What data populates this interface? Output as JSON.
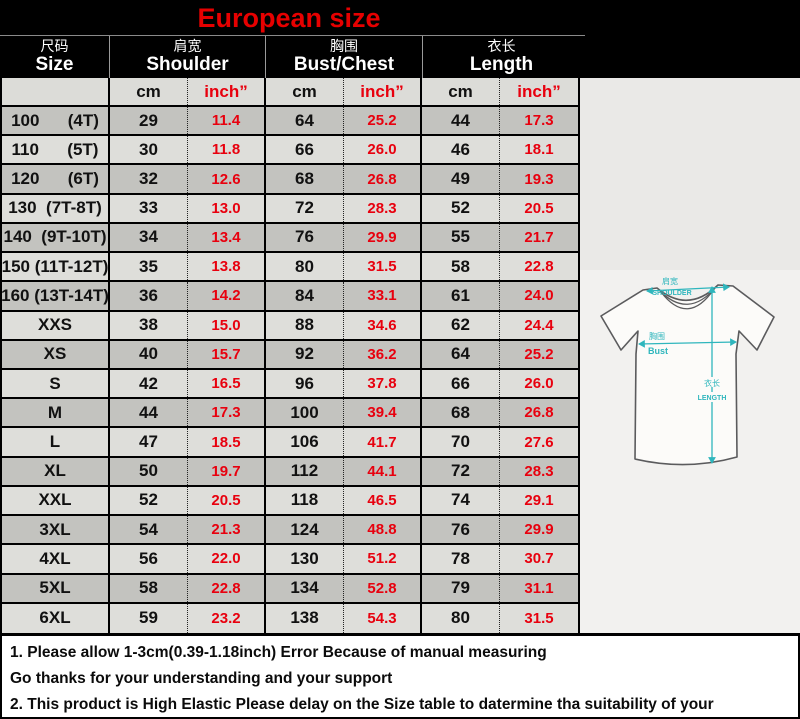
{
  "title": "European size",
  "chart_data": {
    "type": "table",
    "title": "European size",
    "column_groups": [
      {
        "zh": "尺码",
        "en": "Size"
      },
      {
        "zh": "肩宽",
        "en": "Shoulder"
      },
      {
        "zh": "胸围",
        "en": "Bust/Chest"
      },
      {
        "zh": "衣长",
        "en": "Length"
      }
    ],
    "units": {
      "cm": "cm",
      "inch": "inch”"
    },
    "rows": [
      {
        "size": "100      (4T)",
        "shoulder_cm": "29",
        "shoulder_in": "11.4",
        "bust_cm": "64",
        "bust_in": "25.2",
        "length_cm": "44",
        "length_in": "17.3"
      },
      {
        "size": "110      (5T)",
        "shoulder_cm": "30",
        "shoulder_in": "11.8",
        "bust_cm": "66",
        "bust_in": "26.0",
        "length_cm": "46",
        "length_in": "18.1"
      },
      {
        "size": "120      (6T)",
        "shoulder_cm": "32",
        "shoulder_in": "12.6",
        "bust_cm": "68",
        "bust_in": "26.8",
        "length_cm": "49",
        "length_in": "19.3"
      },
      {
        "size": "130  (7T-8T)",
        "shoulder_cm": "33",
        "shoulder_in": "13.0",
        "bust_cm": "72",
        "bust_in": "28.3",
        "length_cm": "52",
        "length_in": "20.5"
      },
      {
        "size": "140  (9T-10T)",
        "shoulder_cm": "34",
        "shoulder_in": "13.4",
        "bust_cm": "76",
        "bust_in": "29.9",
        "length_cm": "55",
        "length_in": "21.7"
      },
      {
        "size": "150 (11T-12T)",
        "shoulder_cm": "35",
        "shoulder_in": "13.8",
        "bust_cm": "80",
        "bust_in": "31.5",
        "length_cm": "58",
        "length_in": "22.8"
      },
      {
        "size": "160 (13T-14T)",
        "shoulder_cm": "36",
        "shoulder_in": "14.2",
        "bust_cm": "84",
        "bust_in": "33.1",
        "length_cm": "61",
        "length_in": "24.0"
      },
      {
        "size": "XXS",
        "shoulder_cm": "38",
        "shoulder_in": "15.0",
        "bust_cm": "88",
        "bust_in": "34.6",
        "length_cm": "62",
        "length_in": "24.4"
      },
      {
        "size": "XS",
        "shoulder_cm": "40",
        "shoulder_in": "15.7",
        "bust_cm": "92",
        "bust_in": "36.2",
        "length_cm": "64",
        "length_in": "25.2"
      },
      {
        "size": "S",
        "shoulder_cm": "42",
        "shoulder_in": "16.5",
        "bust_cm": "96",
        "bust_in": "37.8",
        "length_cm": "66",
        "length_in": "26.0"
      },
      {
        "size": "M",
        "shoulder_cm": "44",
        "shoulder_in": "17.3",
        "bust_cm": "100",
        "bust_in": "39.4",
        "length_cm": "68",
        "length_in": "26.8"
      },
      {
        "size": "L",
        "shoulder_cm": "47",
        "shoulder_in": "18.5",
        "bust_cm": "106",
        "bust_in": "41.7",
        "length_cm": "70",
        "length_in": "27.6"
      },
      {
        "size": "XL",
        "shoulder_cm": "50",
        "shoulder_in": "19.7",
        "bust_cm": "112",
        "bust_in": "44.1",
        "length_cm": "72",
        "length_in": "28.3"
      },
      {
        "size": "XXL",
        "shoulder_cm": "52",
        "shoulder_in": "20.5",
        "bust_cm": "118",
        "bust_in": "46.5",
        "length_cm": "74",
        "length_in": "29.1"
      },
      {
        "size": "3XL",
        "shoulder_cm": "54",
        "shoulder_in": "21.3",
        "bust_cm": "124",
        "bust_in": "48.8",
        "length_cm": "76",
        "length_in": "29.9"
      },
      {
        "size": "4XL",
        "shoulder_cm": "56",
        "shoulder_in": "22.0",
        "bust_cm": "130",
        "bust_in": "51.2",
        "length_cm": "78",
        "length_in": "30.7"
      },
      {
        "size": "5XL",
        "shoulder_cm": "58",
        "shoulder_in": "22.8",
        "bust_cm": "134",
        "bust_in": "52.8",
        "length_cm": "79",
        "length_in": "31.1"
      },
      {
        "size": "6XL",
        "shoulder_cm": "59",
        "shoulder_in": "23.2",
        "bust_cm": "138",
        "bust_in": "54.3",
        "length_cm": "80",
        "length_in": "31.5"
      }
    ]
  },
  "diagram": {
    "shoulder_zh": "肩宽",
    "shoulder_en": "SHOULDER",
    "bust_zh": "胸围",
    "bust_en": "Bust",
    "length_zh": "衣长",
    "length_en": "LENGTH"
  },
  "notes": [
    "1. Please allow 1-3cm(0.39-1.18inch) Error Because of manual measuring",
    "Go thanks for your understanding and your support",
    "2. This product is High Elastic  Please delay on the Size table to datermine tha suitability of your"
  ],
  "colors": {
    "title_red": "#e60000",
    "inch_red": "#e8000e",
    "row_dark": "#c3c3bf",
    "row_light": "#dededa",
    "measure_teal": "#2fb6bd",
    "header_black": "#000000"
  }
}
